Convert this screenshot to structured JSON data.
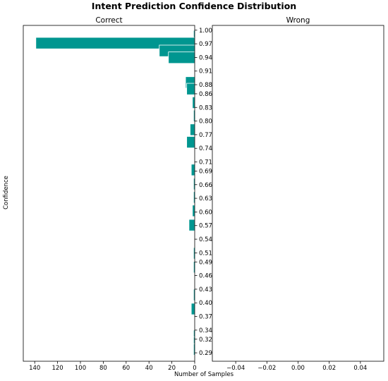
{
  "chart_data": {
    "type": "bar",
    "orientation": "horizontal",
    "title": "Intent Prediction Confidence Distribution",
    "xlabel": "Number of Samples",
    "ylabel": "Confidence",
    "bar_color": "#009690",
    "y_ticks": [
      1.0,
      0.97,
      0.94,
      0.91,
      0.88,
      0.86,
      0.83,
      0.8,
      0.77,
      0.74,
      0.71,
      0.69,
      0.66,
      0.63,
      0.6,
      0.57,
      0.54,
      0.51,
      0.49,
      0.46,
      0.43,
      0.4,
      0.37,
      0.34,
      0.32,
      0.29
    ],
    "y_tick_labels": [
      "1.00",
      "0.97",
      "0.94",
      "0.91",
      "0.88",
      "0.86",
      "0.83",
      "0.80",
      "0.77",
      "0.74",
      "0.71",
      "0.69",
      "0.66",
      "0.63",
      "0.60",
      "0.57",
      "0.54",
      "0.51",
      "0.49",
      "0.46",
      "0.43",
      "0.40",
      "0.37",
      "0.34",
      "0.32",
      "0.29"
    ],
    "ylim": [
      0.2715,
      1.0105
    ],
    "panels": [
      {
        "title": "Correct",
        "xlim": [
          150,
          0
        ],
        "x_ticks": [
          140,
          120,
          100,
          80,
          60,
          40,
          20,
          0
        ],
        "x_tick_labels": [
          "140",
          "120",
          "100",
          "80",
          "60",
          "40",
          "20",
          "0"
        ],
        "bars": [
          {
            "y": 0.987,
            "count": 1
          },
          {
            "y": 0.9715,
            "count": 139
          },
          {
            "y": 0.9545,
            "count": 31
          },
          {
            "y": 0.9395,
            "count": 23
          },
          {
            "y": 0.885,
            "count": 8
          },
          {
            "y": 0.8705,
            "count": 7
          },
          {
            "y": 0.8405,
            "count": 2
          },
          {
            "y": 0.8115,
            "count": 1
          },
          {
            "y": 0.781,
            "count": 4
          },
          {
            "y": 0.7535,
            "count": 7
          },
          {
            "y": 0.6925,
            "count": 3
          },
          {
            "y": 0.6615,
            "count": 1
          },
          {
            "y": 0.632,
            "count": 1
          },
          {
            "y": 0.6025,
            "count": 2
          },
          {
            "y": 0.571,
            "count": 5
          },
          {
            "y": 0.509,
            "count": 1
          },
          {
            "y": 0.4785,
            "count": 1
          },
          {
            "y": 0.4175,
            "count": 1
          },
          {
            "y": 0.3865,
            "count": 3
          },
          {
            "y": 0.3275,
            "count": 1
          },
          {
            "y": 0.3125,
            "count": 1
          },
          {
            "y": 0.2975,
            "count": 1
          }
        ]
      },
      {
        "title": "Wrong",
        "xlim": [
          -0.055,
          0.055
        ],
        "x_ticks": [
          -0.04,
          -0.02,
          0.0,
          0.02,
          0.04
        ],
        "x_tick_labels": [
          "−0.04",
          "−0.02",
          "0.00",
          "0.02",
          "0.04"
        ],
        "bars": []
      }
    ]
  }
}
